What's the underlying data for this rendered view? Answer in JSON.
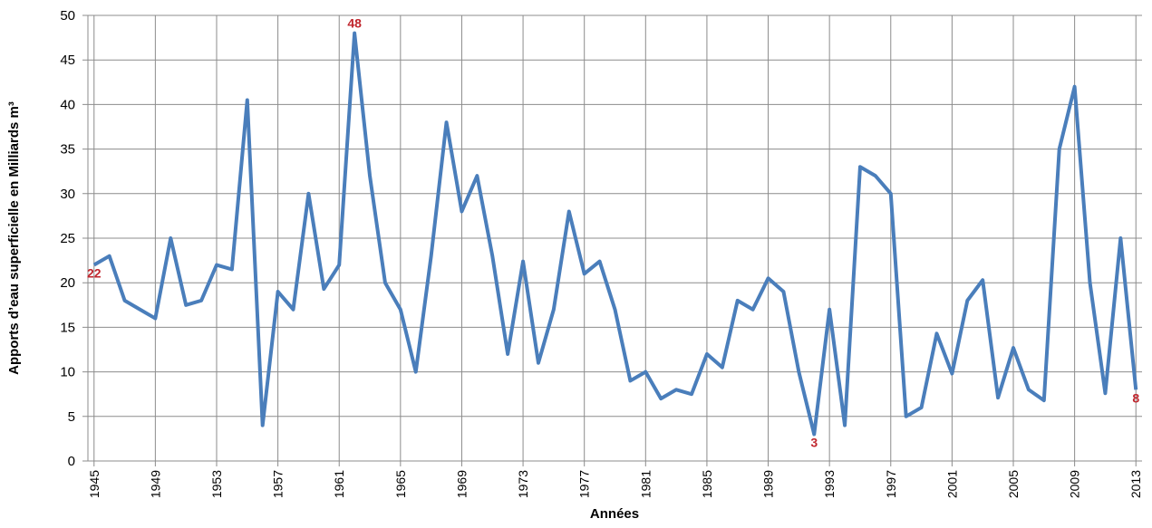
{
  "chart_data": {
    "type": "line",
    "y_label": "Apports d’eau superficielle en Milliards m³",
    "x_label": "Années",
    "x": [
      1945,
      1946,
      1947,
      1948,
      1949,
      1950,
      1951,
      1952,
      1953,
      1954,
      1955,
      1956,
      1957,
      1958,
      1959,
      1960,
      1961,
      1962,
      1963,
      1964,
      1965,
      1966,
      1967,
      1968,
      1969,
      1970,
      1971,
      1972,
      1973,
      1974,
      1975,
      1976,
      1977,
      1978,
      1979,
      1980,
      1981,
      1982,
      1983,
      1984,
      1985,
      1986,
      1987,
      1988,
      1989,
      1990,
      1991,
      1992,
      1993,
      1994,
      1995,
      1996,
      1997,
      1998,
      1999,
      2000,
      2001,
      2002,
      2003,
      2004,
      2005,
      2006,
      2007,
      2008,
      2009,
      2010,
      2011,
      2012,
      2013
    ],
    "series": [
      {
        "name": "Apports",
        "color": "#4a7ebb",
        "values": [
          22,
          23,
          18,
          17,
          16,
          25,
          17.5,
          18,
          22,
          21.5,
          40.5,
          4,
          19,
          17,
          30,
          19.3,
          22,
          48,
          32,
          20,
          17,
          10,
          23,
          38,
          28,
          32,
          23,
          12,
          22.4,
          11,
          17,
          28,
          21,
          22.4,
          17,
          9,
          10,
          7,
          8,
          7.5,
          12,
          10.5,
          18,
          17,
          20.5,
          19,
          10,
          3,
          17,
          4,
          33,
          32,
          30,
          5,
          6,
          14.3,
          9.8,
          18,
          20.3,
          7.1,
          12.7,
          8,
          6.8,
          35,
          42,
          20,
          7.6,
          25,
          8
        ]
      }
    ],
    "annotations": [
      {
        "x": 1945,
        "text": "22"
      },
      {
        "x": 1962,
        "text": "48"
      },
      {
        "x": 1992,
        "text": "3"
      },
      {
        "x": 2013,
        "text": "8"
      }
    ],
    "annotation_color": "#c0262d",
    "xlim": [
      1944.6,
      2013.4
    ],
    "xticks": [
      1945,
      1949,
      1953,
      1957,
      1961,
      1965,
      1969,
      1973,
      1977,
      1981,
      1985,
      1989,
      1993,
      1997,
      2001,
      2005,
      2009,
      2013
    ],
    "ylim": [
      0,
      50
    ],
    "yticks": [
      0,
      5,
      10,
      15,
      20,
      25,
      30,
      35,
      40,
      45,
      50
    ],
    "grid": true
  }
}
